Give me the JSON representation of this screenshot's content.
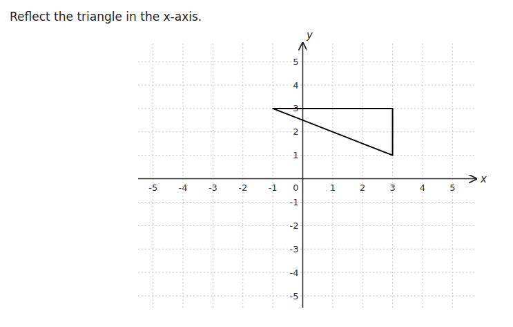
{
  "chart_data": {
    "type": "polygon",
    "title": "Reflect the triangle in the x-axis.",
    "xlabel": "x",
    "ylabel": "y",
    "x": [
      -1,
      3,
      3
    ],
    "values": [
      3,
      3,
      1
    ],
    "color": "black",
    "xlim": [
      -5.5,
      5.8
    ],
    "ylim": [
      -5.5,
      5.8
    ],
    "xticks": [
      -5,
      -4,
      -3,
      -2,
      -1,
      0,
      1,
      2,
      3,
      4,
      5
    ],
    "yticks": [
      -5,
      -4,
      -3,
      -2,
      -1,
      1,
      2,
      3,
      4,
      5
    ],
    "grid": true
  }
}
